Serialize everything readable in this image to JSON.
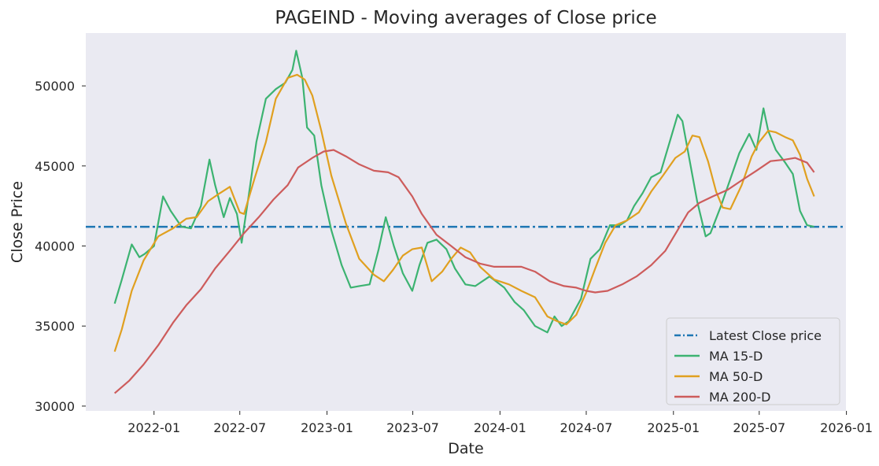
{
  "chart_data": {
    "type": "line",
    "title": "PAGEIND - Moving averages of Close price",
    "xlabel": "Date",
    "ylabel": "Close Price",
    "xlim": [
      "2021-08-10",
      "2025-12-31"
    ],
    "ylim": [
      29700,
      53300
    ],
    "x_ticks": [
      "2022-01",
      "2022-07",
      "2023-01",
      "2023-07",
      "2024-01",
      "2024-07",
      "2025-01",
      "2025-07",
      "2026-01"
    ],
    "y_ticks": [
      30000,
      35000,
      40000,
      45000,
      50000
    ],
    "grid": false,
    "legend": "lower-right",
    "colors": {
      "background": "#eaeaf2",
      "latest": "#1f77b4",
      "ma15": "#3cb371",
      "ma50": "#e0a020",
      "ma200": "#cd5c5c"
    },
    "hline": {
      "name": "Latest Close price",
      "value": 41200
    },
    "series": [
      {
        "name": "MA 15-D",
        "x": [
          "2021-10-10",
          "2021-10-25",
          "2021-11-15",
          "2021-12-01",
          "2021-12-12",
          "2022-01-01",
          "2022-01-20",
          "2022-02-05",
          "2022-02-28",
          "2022-03-20",
          "2022-04-10",
          "2022-04-28",
          "2022-05-10",
          "2022-05-28",
          "2022-06-10",
          "2022-06-25",
          "2022-07-05",
          "2022-07-20",
          "2022-08-05",
          "2022-08-25",
          "2022-09-15",
          "2022-10-05",
          "2022-10-20",
          "2022-10-28",
          "2022-11-10",
          "2022-11-20",
          "2022-12-05",
          "2022-12-20",
          "2023-01-10",
          "2023-02-01",
          "2023-02-20",
          "2023-03-10",
          "2023-04-01",
          "2023-04-20",
          "2023-05-05",
          "2023-05-22",
          "2023-06-10",
          "2023-06-30",
          "2023-07-15",
          "2023-08-01",
          "2023-08-20",
          "2023-09-10",
          "2023-09-28",
          "2023-10-20",
          "2023-11-10",
          "2023-12-10",
          "2024-01-10",
          "2024-02-01",
          "2024-02-20",
          "2024-03-15",
          "2024-04-10",
          "2024-04-25",
          "2024-05-10",
          "2024-05-25",
          "2024-06-20",
          "2024-07-10",
          "2024-07-30",
          "2024-08-20",
          "2024-09-10",
          "2024-09-25",
          "2024-10-10",
          "2024-10-28",
          "2024-11-15",
          "2024-12-05",
          "2024-12-25",
          "2025-01-10",
          "2025-01-20",
          "2025-02-05",
          "2025-02-20",
          "2025-03-10",
          "2025-03-20",
          "2025-04-10",
          "2025-04-30",
          "2025-05-20",
          "2025-06-10",
          "2025-06-25",
          "2025-07-10",
          "2025-07-20",
          "2025-08-05",
          "2025-08-25",
          "2025-09-10",
          "2025-09-25",
          "2025-10-10",
          "2025-10-25"
        ],
        "values": [
          36400,
          37900,
          40100,
          39300,
          39500,
          40000,
          43100,
          42200,
          41200,
          41100,
          42500,
          45400,
          43800,
          41800,
          43000,
          42000,
          40200,
          43200,
          46500,
          49200,
          49800,
          50200,
          51000,
          52200,
          50500,
          47400,
          46900,
          43800,
          41000,
          38800,
          37400,
          37500,
          37600,
          39800,
          41800,
          40000,
          38300,
          37200,
          38800,
          40200,
          40400,
          39800,
          38600,
          37600,
          37500,
          38100,
          37400,
          36500,
          36000,
          35000,
          34600,
          35600,
          35000,
          35300,
          36700,
          39200,
          39800,
          41300,
          41300,
          41600,
          42500,
          43300,
          44300,
          44600,
          46600,
          48200,
          47800,
          45200,
          42800,
          40600,
          40800,
          42400,
          44100,
          45800,
          47000,
          46000,
          48600,
          47200,
          46000,
          45200,
          44500,
          42200,
          41300,
          41200
        ]
      },
      {
        "name": "MA 50-D",
        "x": [
          "2021-10-10",
          "2021-10-25",
          "2021-11-15",
          "2021-12-10",
          "2022-01-10",
          "2022-02-10",
          "2022-03-10",
          "2022-04-01",
          "2022-04-25",
          "2022-05-20",
          "2022-06-10",
          "2022-07-01",
          "2022-07-10",
          "2022-08-01",
          "2022-08-25",
          "2022-09-15",
          "2022-10-10",
          "2022-10-30",
          "2022-11-15",
          "2022-12-01",
          "2022-12-20",
          "2023-01-10",
          "2023-02-10",
          "2023-03-10",
          "2023-04-10",
          "2023-05-01",
          "2023-05-20",
          "2023-06-10",
          "2023-06-30",
          "2023-07-20",
          "2023-08-10",
          "2023-09-01",
          "2023-09-20",
          "2023-10-10",
          "2023-10-30",
          "2023-11-20",
          "2023-12-20",
          "2024-01-20",
          "2024-02-15",
          "2024-03-15",
          "2024-04-10",
          "2024-05-01",
          "2024-05-20",
          "2024-06-10",
          "2024-07-01",
          "2024-07-20",
          "2024-08-10",
          "2024-09-01",
          "2024-09-25",
          "2024-10-20",
          "2024-11-15",
          "2024-12-10",
          "2025-01-05",
          "2025-01-25",
          "2025-02-10",
          "2025-02-25",
          "2025-03-15",
          "2025-04-01",
          "2025-04-15",
          "2025-05-01",
          "2025-05-25",
          "2025-06-15",
          "2025-07-01",
          "2025-07-20",
          "2025-08-05",
          "2025-08-25",
          "2025-09-10",
          "2025-09-25",
          "2025-10-10",
          "2025-10-25"
        ],
        "values": [
          33400,
          34800,
          37200,
          39100,
          40600,
          41100,
          41700,
          41800,
          42800,
          43300,
          43700,
          42100,
          42000,
          44200,
          46500,
          49200,
          50500,
          50700,
          50400,
          49400,
          47200,
          44400,
          41400,
          39200,
          38200,
          37800,
          38500,
          39400,
          39800,
          39900,
          37800,
          38400,
          39200,
          39900,
          39600,
          38700,
          37900,
          37600,
          37200,
          36800,
          35600,
          35300,
          35100,
          35700,
          37100,
          38600,
          40200,
          41300,
          41600,
          42100,
          43400,
          44400,
          45500,
          45900,
          46900,
          46800,
          45300,
          43400,
          42400,
          42300,
          43800,
          45600,
          46500,
          47200,
          47100,
          46800,
          46600,
          45700,
          44200,
          43100
        ]
      },
      {
        "name": "MA 200-D",
        "x": [
          "2021-10-10",
          "2021-11-10",
          "2021-12-10",
          "2022-01-10",
          "2022-02-10",
          "2022-03-10",
          "2022-04-10",
          "2022-05-10",
          "2022-06-10",
          "2022-07-10",
          "2022-08-10",
          "2022-09-10",
          "2022-10-10",
          "2022-11-01",
          "2022-12-01",
          "2022-12-25",
          "2023-01-15",
          "2023-02-10",
          "2023-03-10",
          "2023-04-10",
          "2023-05-10",
          "2023-06-01",
          "2023-06-30",
          "2023-07-20",
          "2023-08-20",
          "2023-09-20",
          "2023-10-20",
          "2023-11-20",
          "2023-12-20",
          "2024-01-20",
          "2024-02-15",
          "2024-03-15",
          "2024-04-15",
          "2024-05-15",
          "2024-06-10",
          "2024-07-01",
          "2024-07-20",
          "2024-08-15",
          "2024-09-15",
          "2024-10-15",
          "2024-11-15",
          "2024-12-15",
          "2025-01-10",
          "2025-02-01",
          "2025-02-25",
          "2025-03-25",
          "2025-04-25",
          "2025-05-25",
          "2025-06-25",
          "2025-07-25",
          "2025-08-25",
          "2025-09-15",
          "2025-10-10",
          "2025-10-25"
        ],
        "values": [
          30800,
          31600,
          32600,
          33800,
          35200,
          36300,
          37300,
          38600,
          39700,
          40800,
          41800,
          42900,
          43800,
          44900,
          45500,
          45900,
          46000,
          45600,
          45100,
          44700,
          44600,
          44300,
          43100,
          42000,
          40700,
          40000,
          39300,
          38900,
          38700,
          38700,
          38700,
          38400,
          37800,
          37500,
          37400,
          37200,
          37100,
          37200,
          37600,
          38100,
          38800,
          39700,
          41000,
          42100,
          42700,
          43100,
          43500,
          44100,
          44700,
          45300,
          45400,
          45500,
          45200,
          44600
        ]
      }
    ]
  }
}
